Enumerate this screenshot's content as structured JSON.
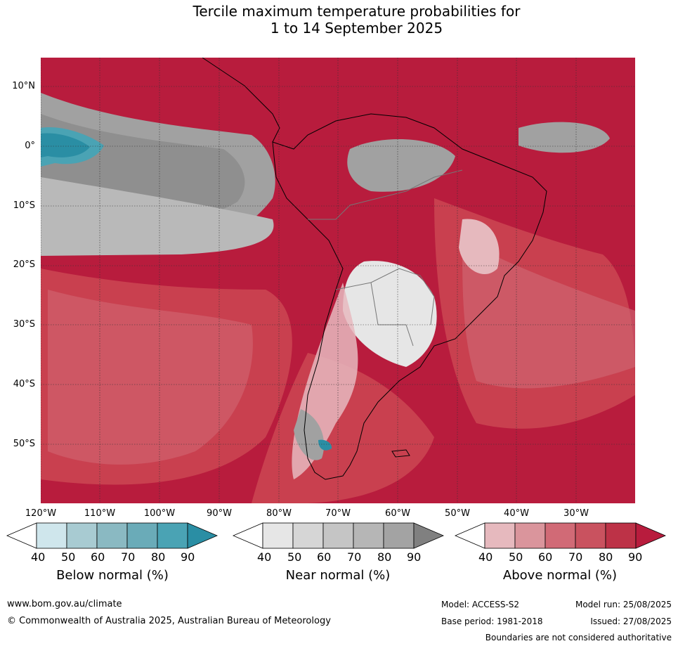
{
  "title": {
    "line1": "Tercile maximum temperature probabilities for",
    "line2": "1 to 14 September 2025"
  },
  "map": {
    "lat_labels": [
      "10°N",
      "0°",
      "10°S",
      "20°S",
      "30°S",
      "40°S",
      "50°S"
    ],
    "lon_labels": [
      "120°W",
      "110°W",
      "100°W",
      "90°W",
      "80°W",
      "70°W",
      "60°W",
      "50°W",
      "40°W",
      "30°W"
    ],
    "colors": {
      "above_90": "#b81c3d",
      "above_80": "#c9404f",
      "above_70": "#d16a76",
      "above_60": "#da959c",
      "above_50": "#e6b9be",
      "near_60": "#cdcdcd",
      "near_70": "#b9b9b9",
      "near_80": "#a1a1a1",
      "near_90": "#888888",
      "below_80": "#4aa3b4",
      "below_90": "#2a8ea4",
      "white": "#f2f2f2"
    }
  },
  "colorbars": {
    "tick_labels": [
      "40",
      "50",
      "60",
      "70",
      "80",
      "90"
    ],
    "below": {
      "title": "Below normal (%)",
      "colors": [
        "#cfe6ec",
        "#a8cbd2",
        "#8ab9c2",
        "#6aabb8",
        "#4aa3b4",
        "#2a8ea4"
      ]
    },
    "near": {
      "title": "Near normal (%)",
      "colors": [
        "#e6e6e6",
        "#d6d6d6",
        "#c5c5c5",
        "#b6b6b6",
        "#a3a3a3",
        "#808080"
      ]
    },
    "above": {
      "title": "Above normal (%)",
      "colors": [
        "#e6b9be",
        "#da959c",
        "#d16a76",
        "#c9525f",
        "#bd3247",
        "#b81c3d"
      ]
    }
  },
  "footer": {
    "website": "www.bom.gov.au/climate",
    "copyright": "© Commonwealth of Australia 2025, Australian Bureau of Meteorology",
    "model": "Model: ACCESS-S2",
    "model_run": "Model run: 25/08/2025",
    "base_period": "Base period: 1981-2018",
    "issued": "Issued: 27/08/2025",
    "disclaimer": "Boundaries are not considered authoritative"
  }
}
